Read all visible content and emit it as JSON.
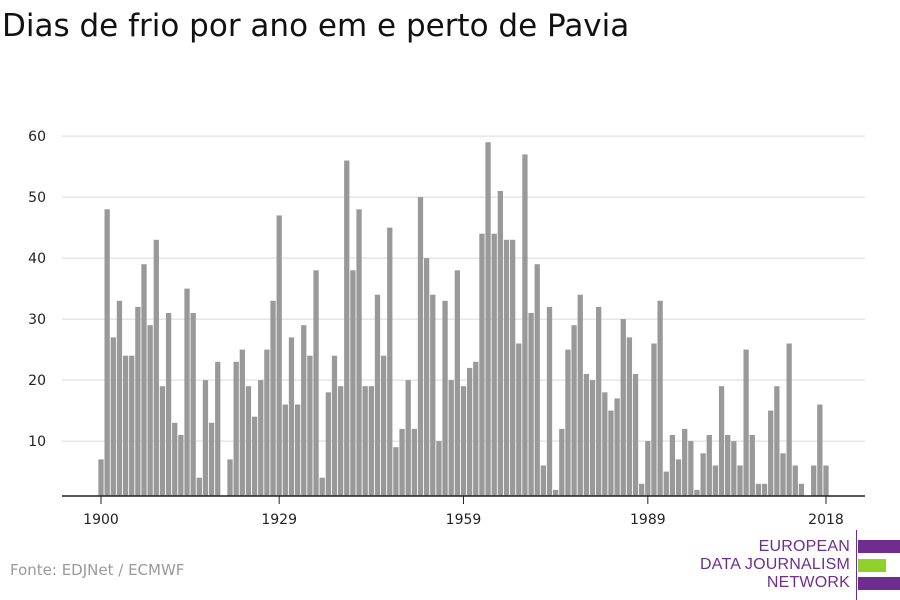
{
  "title": "Dias de frio por ano em e perto de Pavia",
  "source": "Fonte: EDJNet / ECMWF",
  "logo": {
    "lines": [
      "EUROPEAN",
      "DATA JOURNALISM",
      "NETWORK"
    ],
    "colors": {
      "purple": "#6f2e8e",
      "green": "#8fd12a"
    }
  },
  "chart_data": {
    "type": "bar",
    "title": "Dias de frio por ano em e perto de Pavia",
    "xlabel": "",
    "ylabel": "",
    "x_tick_labels": [
      "1900",
      "1929",
      "1959",
      "1989",
      "2018"
    ],
    "y_ticks": [
      10,
      20,
      30,
      40,
      50,
      60
    ],
    "ylim": [
      1,
      61
    ],
    "grid": true,
    "bar_color": "#999999",
    "x": [
      1900,
      1901,
      1902,
      1903,
      1904,
      1905,
      1906,
      1907,
      1908,
      1909,
      1910,
      1911,
      1912,
      1913,
      1914,
      1915,
      1916,
      1917,
      1918,
      1919,
      1920,
      1921,
      1922,
      1923,
      1924,
      1925,
      1926,
      1927,
      1928,
      1929,
      1930,
      1931,
      1932,
      1933,
      1934,
      1935,
      1936,
      1937,
      1938,
      1939,
      1940,
      1941,
      1942,
      1943,
      1944,
      1945,
      1946,
      1947,
      1948,
      1949,
      1950,
      1951,
      1952,
      1953,
      1954,
      1955,
      1956,
      1957,
      1958,
      1959,
      1960,
      1961,
      1962,
      1963,
      1964,
      1965,
      1966,
      1967,
      1968,
      1969,
      1970,
      1971,
      1972,
      1973,
      1974,
      1975,
      1976,
      1977,
      1978,
      1979,
      1980,
      1981,
      1982,
      1983,
      1984,
      1985,
      1986,
      1987,
      1988,
      1989,
      1990,
      1991,
      1992,
      1993,
      1994,
      1995,
      1996,
      1997,
      1998,
      1999,
      2000,
      2001,
      2002,
      2003,
      2004,
      2005,
      2006,
      2007,
      2008,
      2009,
      2010,
      2011,
      2012,
      2013,
      2014,
      2015,
      2016,
      2017,
      2018
    ],
    "values": [
      7,
      48,
      27,
      33,
      24,
      24,
      32,
      39,
      29,
      43,
      19,
      31,
      13,
      11,
      35,
      31,
      4,
      20,
      13,
      23,
      0,
      7,
      23,
      25,
      19,
      14,
      20,
      25,
      33,
      47,
      16,
      27,
      16,
      29,
      24,
      38,
      4,
      18,
      24,
      19,
      56,
      38,
      48,
      19,
      19,
      34,
      24,
      45,
      9,
      12,
      20,
      12,
      50,
      40,
      34,
      10,
      33,
      20,
      38,
      19,
      22,
      23,
      44,
      59,
      44,
      51,
      43,
      43,
      26,
      57,
      31,
      39,
      6,
      32,
      2,
      12,
      25,
      29,
      34,
      21,
      20,
      32,
      18,
      15,
      17,
      30,
      27,
      21,
      3,
      10,
      26,
      33,
      5,
      11,
      7,
      12,
      10,
      2,
      8,
      11,
      6,
      19,
      11,
      10,
      6,
      25,
      11,
      3,
      3,
      15,
      19,
      8,
      26,
      6,
      3,
      0,
      6,
      16,
      6
    ]
  }
}
